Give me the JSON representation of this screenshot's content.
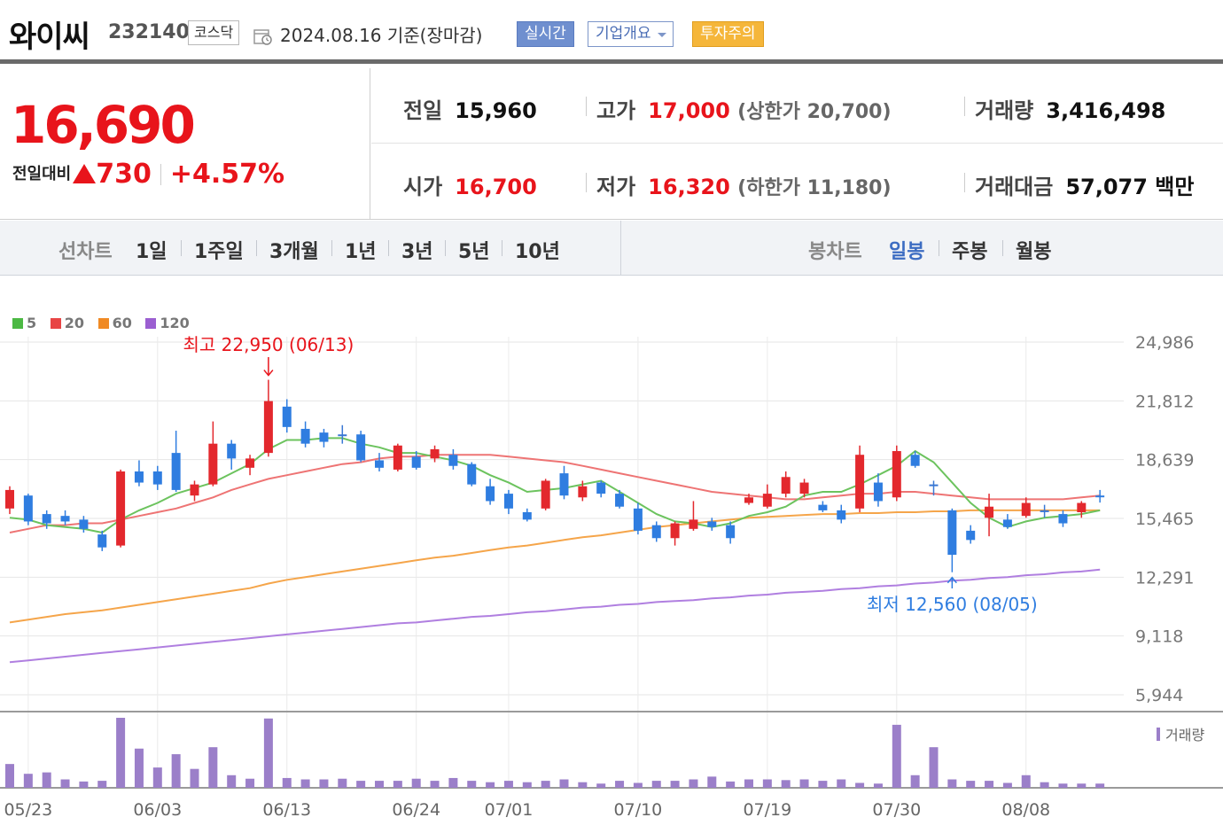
{
  "header": {
    "stock_name": "와이씨",
    "stock_code": "232140",
    "market": "코스닥",
    "date_text": "2024.08.16  기준(장마감)",
    "realtime_label": "실시간",
    "company_label": "기업개요",
    "warning_label": "투자주의",
    "colors": {
      "realtime": "#6f8fcf",
      "warning": "#f5b63a"
    }
  },
  "price": {
    "current": "16,690",
    "change_label": "전일대비",
    "change": "730",
    "change_pct": "+4.57%",
    "color_up": "#e8141b",
    "prev_label": "전일",
    "prev": "15,960",
    "high_label": "고가",
    "high": "17,000",
    "upper_limit_text": "(상한가 20,700)",
    "volume_label": "거래량",
    "volume": "3,416,498",
    "open_label": "시가",
    "open": "16,700",
    "low_label": "저가",
    "low": "16,320",
    "lower_limit_text": "(하한가 11,180)",
    "amount_label": "거래대금",
    "amount": "57,077 백만"
  },
  "periods": {
    "line_label": "선차트",
    "line_items": [
      "1일",
      "1주일",
      "3개월",
      "1년",
      "3년",
      "5년",
      "10년"
    ],
    "candle_label": "봉차트",
    "candle_items": [
      "일봉",
      "주봉",
      "월봉"
    ],
    "selected": "일봉"
  },
  "chart_data": {
    "type": "candlestick",
    "legend": [
      {
        "name": "5",
        "color": "#4cb944"
      },
      {
        "name": "20",
        "color": "#e84545"
      },
      {
        "name": "60",
        "color": "#f08a24"
      },
      {
        "name": "120",
        "color": "#9b5fd1"
      }
    ],
    "y_ticks": [
      24986,
      21812,
      18639,
      15465,
      12291,
      9118,
      5944
    ],
    "ylim": [
      5944,
      24986
    ],
    "x_ticks": [
      "05/23",
      "06/03",
      "06/13",
      "06/24",
      "07/01",
      "07/10",
      "07/19",
      "07/30",
      "08/08"
    ],
    "x_tick_index": [
      1,
      8,
      15,
      22,
      27,
      34,
      41,
      48,
      55
    ],
    "max_annotation": "최고 22,950 (06/13)",
    "max_index": 15,
    "max_value": 22950,
    "min_annotation": "최저 12,560 (08/05)",
    "min_index": 52,
    "min_value": 12560,
    "volume_label": "거래량",
    "candles": [
      {
        "o": 16000,
        "c": 17000,
        "h": 17200,
        "l": 15700
      },
      {
        "o": 16700,
        "c": 15300,
        "h": 16800,
        "l": 15100
      },
      {
        "o": 15700,
        "c": 15200,
        "h": 15900,
        "l": 14900
      },
      {
        "o": 15600,
        "c": 15300,
        "h": 15900,
        "l": 15100
      },
      {
        "o": 15400,
        "c": 14900,
        "h": 15600,
        "l": 14700
      },
      {
        "o": 14600,
        "c": 13900,
        "h": 14800,
        "l": 13700
      },
      {
        "o": 14000,
        "c": 18000,
        "h": 18100,
        "l": 13900
      },
      {
        "o": 18000,
        "c": 17400,
        "h": 18600,
        "l": 17200
      },
      {
        "o": 18000,
        "c": 17300,
        "h": 18300,
        "l": 17000
      },
      {
        "o": 19000,
        "c": 17000,
        "h": 20200,
        "l": 16900
      },
      {
        "o": 16700,
        "c": 17300,
        "h": 17500,
        "l": 16400
      },
      {
        "o": 17300,
        "c": 19500,
        "h": 20700,
        "l": 17200
      },
      {
        "o": 19500,
        "c": 18700,
        "h": 19700,
        "l": 18100
      },
      {
        "o": 18200,
        "c": 18700,
        "h": 18900,
        "l": 17800
      },
      {
        "o": 19000,
        "c": 21800,
        "h": 22950,
        "l": 18800
      },
      {
        "o": 21500,
        "c": 20400,
        "h": 21900,
        "l": 20100
      },
      {
        "o": 20300,
        "c": 19500,
        "h": 20700,
        "l": 19300
      },
      {
        "o": 20100,
        "c": 19600,
        "h": 20300,
        "l": 19300
      },
      {
        "o": 20000,
        "c": 20000,
        "h": 20500,
        "l": 19500
      },
      {
        "o": 20000,
        "c": 18600,
        "h": 20200,
        "l": 18500
      },
      {
        "o": 18600,
        "c": 18200,
        "h": 19000,
        "l": 18000
      },
      {
        "o": 18100,
        "c": 19400,
        "h": 19500,
        "l": 18000
      },
      {
        "o": 18800,
        "c": 18200,
        "h": 19100,
        "l": 18100
      },
      {
        "o": 18700,
        "c": 19200,
        "h": 19400,
        "l": 18500
      },
      {
        "o": 18900,
        "c": 18300,
        "h": 19200,
        "l": 18100
      },
      {
        "o": 18400,
        "c": 17300,
        "h": 18500,
        "l": 17200
      },
      {
        "o": 17200,
        "c": 16400,
        "h": 17600,
        "l": 16200
      },
      {
        "o": 16800,
        "c": 16000,
        "h": 17000,
        "l": 15700
      },
      {
        "o": 15800,
        "c": 15400,
        "h": 16000,
        "l": 15300
      },
      {
        "o": 16000,
        "c": 17500,
        "h": 17600,
        "l": 15900
      },
      {
        "o": 17900,
        "c": 16700,
        "h": 18300,
        "l": 16500
      },
      {
        "o": 16600,
        "c": 17200,
        "h": 17500,
        "l": 16400
      },
      {
        "o": 17400,
        "c": 16800,
        "h": 17500,
        "l": 16600
      },
      {
        "o": 16800,
        "c": 16100,
        "h": 17000,
        "l": 16000
      },
      {
        "o": 16000,
        "c": 14800,
        "h": 16300,
        "l": 14600
      },
      {
        "o": 15100,
        "c": 14400,
        "h": 15300,
        "l": 14200
      },
      {
        "o": 14400,
        "c": 15200,
        "h": 15300,
        "l": 14000
      },
      {
        "o": 14900,
        "c": 15400,
        "h": 16400,
        "l": 14800
      },
      {
        "o": 15300,
        "c": 15000,
        "h": 15500,
        "l": 14800
      },
      {
        "o": 15100,
        "c": 14400,
        "h": 15300,
        "l": 14100
      },
      {
        "o": 16300,
        "c": 16600,
        "h": 16800,
        "l": 16200
      },
      {
        "o": 16100,
        "c": 16800,
        "h": 17300,
        "l": 16000
      },
      {
        "o": 16800,
        "c": 17700,
        "h": 18000,
        "l": 16600
      },
      {
        "o": 16800,
        "c": 17400,
        "h": 17600,
        "l": 16600
      },
      {
        "o": 16200,
        "c": 15900,
        "h": 16400,
        "l": 15800
      },
      {
        "o": 15900,
        "c": 15400,
        "h": 16200,
        "l": 15200
      },
      {
        "o": 16000,
        "c": 18900,
        "h": 19400,
        "l": 15800
      },
      {
        "o": 17400,
        "c": 16400,
        "h": 17900,
        "l": 16100
      },
      {
        "o": 16600,
        "c": 19100,
        "h": 19400,
        "l": 16400
      },
      {
        "o": 18900,
        "c": 18300,
        "h": 19100,
        "l": 18200
      },
      {
        "o": 17300,
        "c": 17300,
        "h": 17500,
        "l": 16700
      },
      {
        "o": 15900,
        "c": 13500,
        "h": 16000,
        "l": 12560
      },
      {
        "o": 14800,
        "c": 14300,
        "h": 15100,
        "l": 14100
      },
      {
        "o": 15500,
        "c": 16100,
        "h": 16800,
        "l": 14500
      },
      {
        "o": 15400,
        "c": 15000,
        "h": 15700,
        "l": 14900
      },
      {
        "o": 15600,
        "c": 16300,
        "h": 16600,
        "l": 15500
      },
      {
        "o": 15900,
        "c": 15900,
        "h": 16200,
        "l": 15500
      },
      {
        "o": 15700,
        "c": 15200,
        "h": 15900,
        "l": 15000
      },
      {
        "o": 15800,
        "c": 16300,
        "h": 16400,
        "l": 15500
      },
      {
        "o": 16700,
        "c": 16690,
        "h": 17000,
        "l": 16320
      }
    ],
    "ma5": [
      15500,
      15400,
      15100,
      15000,
      14900,
      14700,
      15400,
      15900,
      16300,
      16800,
      17100,
      17400,
      17900,
      18400,
      19200,
      19700,
      19700,
      19800,
      19800,
      19500,
      19300,
      19000,
      19000,
      18800,
      18600,
      18300,
      17800,
      17400,
      16900,
      17000,
      17100,
      17300,
      17500,
      16900,
      16300,
      15700,
      15300,
      15200,
      15000,
      15200,
      15600,
      15800,
      16100,
      16700,
      16900,
      16900,
      17300,
      17800,
      18300,
      19100,
      18500,
      17400,
      16300,
      15500,
      15000,
      15300,
      15500,
      15600,
      15700,
      15900
    ],
    "ma20": [
      14700,
      14900,
      15100,
      15100,
      15200,
      15200,
      15400,
      15600,
      15800,
      16000,
      16300,
      16600,
      17000,
      17300,
      17600,
      17800,
      18000,
      18200,
      18400,
      18500,
      18700,
      18800,
      18800,
      18900,
      18900,
      18900,
      18900,
      18800,
      18700,
      18600,
      18500,
      18300,
      18100,
      17900,
      17700,
      17500,
      17300,
      17100,
      16900,
      16800,
      16700,
      16600,
      16500,
      16500,
      16600,
      16700,
      16800,
      16800,
      16900,
      16900,
      16800,
      16700,
      16600,
      16500,
      16500,
      16500,
      16500,
      16500,
      16600,
      16700
    ],
    "ma60": [
      9850,
      10000,
      10150,
      10300,
      10400,
      10500,
      10650,
      10800,
      10950,
      11100,
      11250,
      11400,
      11550,
      11700,
      11950,
      12150,
      12300,
      12450,
      12600,
      12750,
      12900,
      13050,
      13200,
      13350,
      13450,
      13600,
      13750,
      13900,
      14000,
      14150,
      14300,
      14450,
      14550,
      14700,
      14850,
      15000,
      15100,
      15200,
      15300,
      15400,
      15500,
      15550,
      15600,
      15650,
      15700,
      15700,
      15750,
      15750,
      15800,
      15800,
      15850,
      15850,
      15900,
      15900,
      15900,
      15900,
      15900,
      15900,
      15900,
      15900
    ],
    "ma120": [
      7700,
      7800,
      7900,
      8000,
      8100,
      8200,
      8300,
      8400,
      8500,
      8600,
      8700,
      8800,
      8900,
      9000,
      9100,
      9200,
      9300,
      9400,
      9500,
      9600,
      9700,
      9800,
      9850,
      9950,
      10050,
      10150,
      10200,
      10300,
      10400,
      10450,
      10550,
      10650,
      10700,
      10800,
      10850,
      10950,
      11000,
      11050,
      11150,
      11200,
      11300,
      11350,
      11450,
      11500,
      11550,
      11650,
      11700,
      11800,
      11850,
      11950,
      12000,
      12100,
      12150,
      12250,
      12300,
      12400,
      12450,
      12550,
      12600,
      12700
    ],
    "volume": [
      0.34,
      0.2,
      0.22,
      0.12,
      0.09,
      0.1,
      1.0,
      0.56,
      0.29,
      0.48,
      0.27,
      0.58,
      0.18,
      0.13,
      0.99,
      0.14,
      0.12,
      0.12,
      0.13,
      0.1,
      0.1,
      0.1,
      0.13,
      0.1,
      0.14,
      0.1,
      0.08,
      0.1,
      0.08,
      0.1,
      0.12,
      0.08,
      0.06,
      0.1,
      0.07,
      0.1,
      0.1,
      0.12,
      0.16,
      0.09,
      0.12,
      0.12,
      0.11,
      0.12,
      0.1,
      0.12,
      0.07,
      0.06,
      0.9,
      0.18,
      0.58,
      0.12,
      0.1,
      0.1,
      0.07,
      0.18,
      0.08,
      0.06,
      0.06,
      0.06
    ]
  }
}
